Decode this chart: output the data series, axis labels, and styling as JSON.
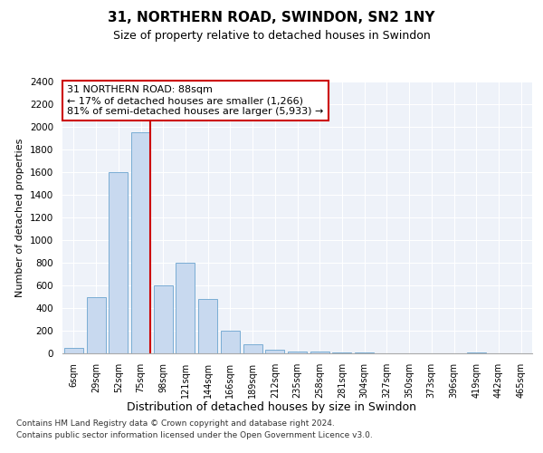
{
  "title1": "31, NORTHERN ROAD, SWINDON, SN2 1NY",
  "title2": "Size of property relative to detached houses in Swindon",
  "xlabel": "Distribution of detached houses by size in Swindon",
  "ylabel": "Number of detached properties",
  "categories": [
    "6sqm",
    "29sqm",
    "52sqm",
    "75sqm",
    "98sqm",
    "121sqm",
    "144sqm",
    "166sqm",
    "189sqm",
    "212sqm",
    "235sqm",
    "258sqm",
    "281sqm",
    "304sqm",
    "327sqm",
    "350sqm",
    "373sqm",
    "396sqm",
    "419sqm",
    "442sqm",
    "465sqm"
  ],
  "values": [
    50,
    500,
    1600,
    1950,
    600,
    800,
    480,
    200,
    80,
    35,
    20,
    20,
    10,
    5,
    0,
    0,
    0,
    0,
    10,
    0,
    0
  ],
  "bar_color": "#c8d9ef",
  "bar_edge_color": "#7aadd4",
  "vline_color": "#cc0000",
  "vline_pos": 3.43,
  "annotation_line1": "31 NORTHERN ROAD: 88sqm",
  "annotation_line2": "← 17% of detached houses are smaller (1,266)",
  "annotation_line3": "81% of semi-detached houses are larger (5,933) →",
  "annotation_box_facecolor": "#ffffff",
  "annotation_box_edgecolor": "#cc0000",
  "background_color": "#eef2f9",
  "footer_line1": "Contains HM Land Registry data © Crown copyright and database right 2024.",
  "footer_line2": "Contains public sector information licensed under the Open Government Licence v3.0.",
  "ylim": [
    0,
    2400
  ],
  "yticks": [
    0,
    200,
    400,
    600,
    800,
    1000,
    1200,
    1400,
    1600,
    1800,
    2000,
    2200,
    2400
  ]
}
